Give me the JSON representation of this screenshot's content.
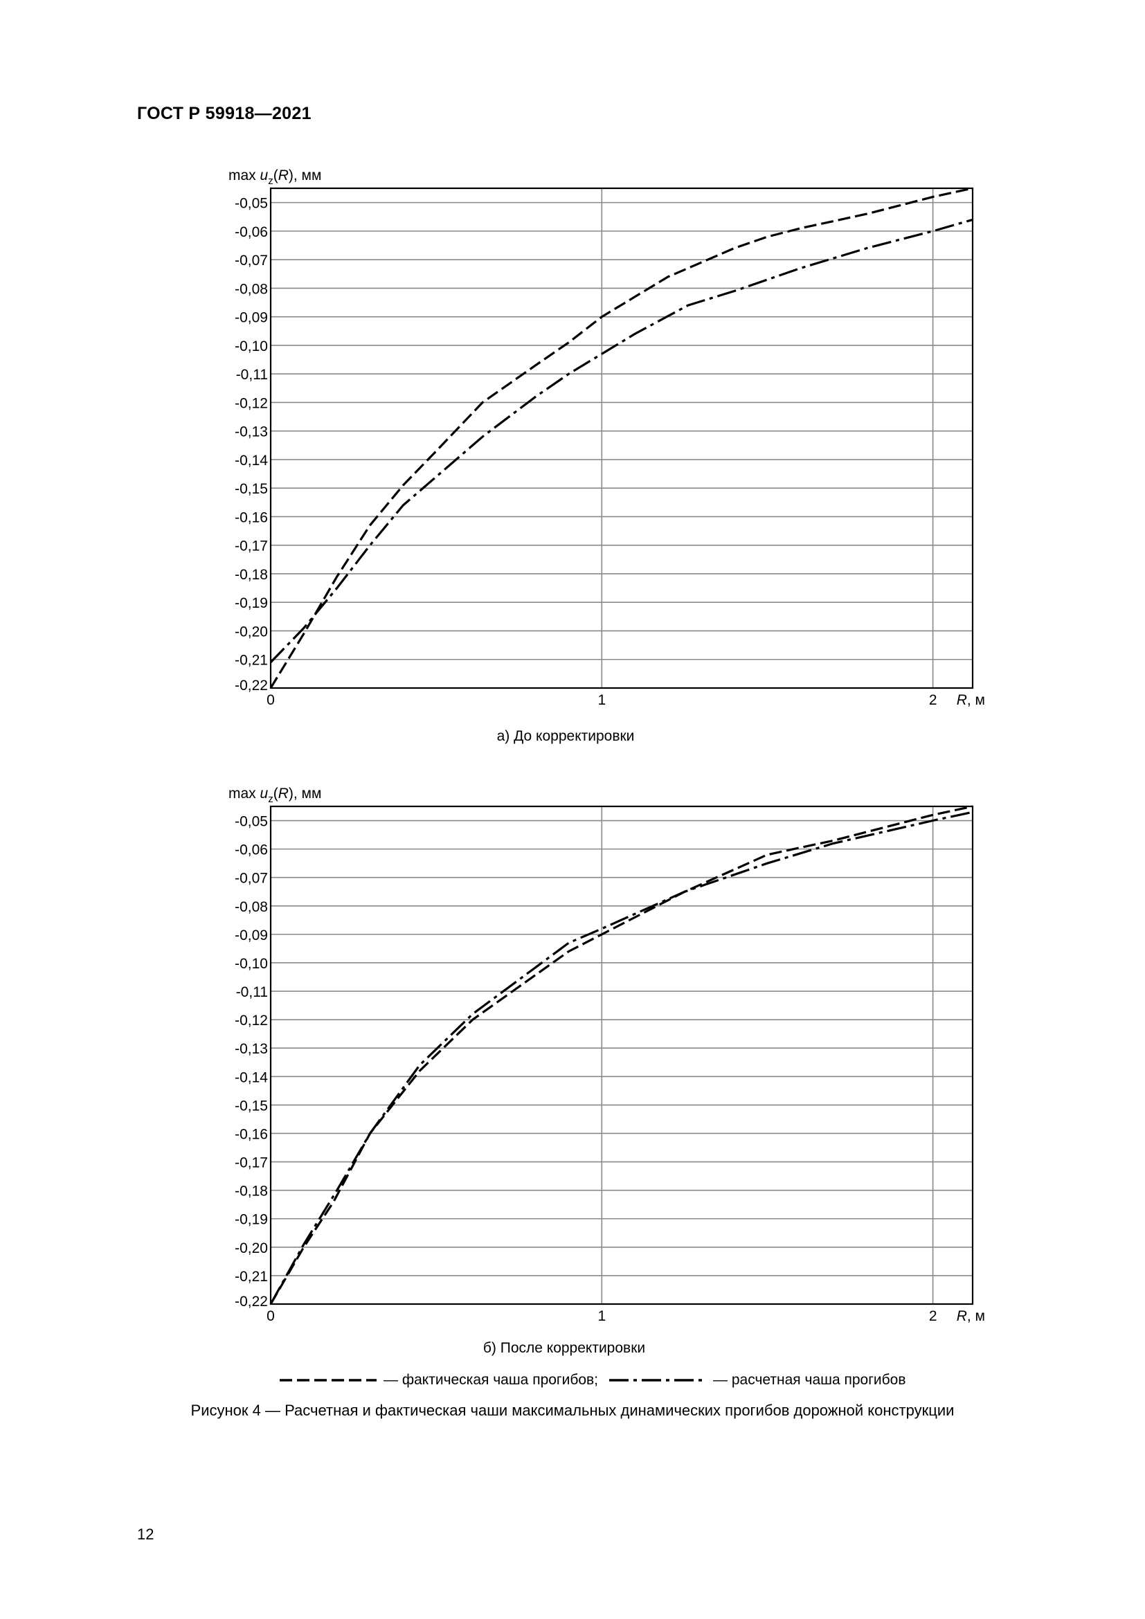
{
  "header": {
    "doc_id": "ГОСТ Р 59918—2021"
  },
  "chart_data": [
    {
      "type": "line",
      "caption": "а) До корректировки",
      "ylabel": "max u_z(R), мм",
      "ylabel_parts": {
        "prefix": "max ",
        "var": "u",
        "sub": "z",
        "arg_open": "(",
        "arg": "R",
        "suffix": "), мм"
      },
      "xlabel_parts": {
        "var": "R",
        "suffix": ", м"
      },
      "xlim": [
        0,
        2.12
      ],
      "ylim": [
        -0.22,
        -0.045
      ],
      "xticks": [
        0,
        1,
        2
      ],
      "xtick_labels": [
        "0",
        "1",
        "2"
      ],
      "yticks": [
        -0.05,
        -0.06,
        -0.07,
        -0.08,
        -0.09,
        -0.1,
        -0.11,
        -0.12,
        -0.13,
        -0.14,
        -0.15,
        -0.16,
        -0.17,
        -0.18,
        -0.19,
        -0.2,
        -0.21,
        -0.22
      ],
      "ytick_labels": [
        "-0,05",
        "-0,06",
        "-0,07",
        "-0,08",
        "-0,09",
        "-0,10",
        "-0,11",
        "-0,12",
        "-0,13",
        "-0,14",
        "-0,15",
        "-0,16",
        "-0,17",
        "-0,18",
        "-0,19",
        "-0,20",
        "-0,21",
        "-0,22"
      ],
      "grid": true,
      "series": [
        {
          "name": "фактическая чаша прогибов",
          "style": "dashed",
          "x": [
            0,
            0.1,
            0.2,
            0.3,
            0.4,
            0.5,
            0.64,
            0.8,
            0.9,
            1.0,
            1.1,
            1.2,
            1.3,
            1.4,
            1.5,
            1.6,
            1.8,
            2.0,
            2.12
          ],
          "y": [
            -0.22,
            -0.201,
            -0.181,
            -0.163,
            -0.149,
            -0.137,
            -0.12,
            -0.107,
            -0.099,
            -0.09,
            -0.083,
            -0.076,
            -0.071,
            -0.066,
            -0.062,
            -0.059,
            -0.054,
            -0.048,
            -0.045
          ]
        },
        {
          "name": "расчетная чаша прогибов",
          "style": "dashdot",
          "x": [
            0,
            0.1,
            0.2,
            0.3,
            0.4,
            0.5,
            0.64,
            0.8,
            0.9,
            1.0,
            1.1,
            1.26,
            1.4,
            1.6,
            1.8,
            2.0,
            2.12
          ],
          "y": [
            -0.211,
            -0.199,
            -0.185,
            -0.17,
            -0.156,
            -0.146,
            -0.132,
            -0.118,
            -0.11,
            -0.103,
            -0.096,
            -0.086,
            -0.081,
            -0.073,
            -0.066,
            -0.06,
            -0.056
          ]
        }
      ]
    },
    {
      "type": "line",
      "caption": "б) После корректировки",
      "ylabel": "max u_z(R), мм",
      "ylabel_parts": {
        "prefix": "max ",
        "var": "u",
        "sub": "z",
        "arg_open": "(",
        "arg": "R",
        "suffix": "), мм"
      },
      "xlabel_parts": {
        "var": "R",
        "suffix": ", м"
      },
      "xlim": [
        0,
        2.12
      ],
      "ylim": [
        -0.22,
        -0.045
      ],
      "xticks": [
        0,
        1,
        2
      ],
      "xtick_labels": [
        "0",
        "1",
        "2"
      ],
      "yticks": [
        -0.05,
        -0.06,
        -0.07,
        -0.08,
        -0.09,
        -0.1,
        -0.11,
        -0.12,
        -0.13,
        -0.14,
        -0.15,
        -0.16,
        -0.17,
        -0.18,
        -0.19,
        -0.2,
        -0.21,
        -0.22
      ],
      "ytick_labels": [
        "-0,05",
        "-0,06",
        "-0,07",
        "-0,08",
        "-0,09",
        "-0,10",
        "-0,11",
        "-0,12",
        "-0,13",
        "-0,14",
        "-0,15",
        "-0,16",
        "-0,17",
        "-0,18",
        "-0,19",
        "-0,20",
        "-0,21",
        "-0,22"
      ],
      "grid": true,
      "series": [
        {
          "name": "фактическая чаша прогибов",
          "style": "dashed",
          "x": [
            0,
            0.1,
            0.19,
            0.3,
            0.45,
            0.61,
            0.9,
            1.0,
            1.25,
            1.5,
            1.7,
            2.0,
            2.12
          ],
          "y": [
            -0.22,
            -0.2,
            -0.184,
            -0.16,
            -0.138,
            -0.12,
            -0.096,
            -0.09,
            -0.075,
            -0.062,
            -0.057,
            -0.048,
            -0.045
          ]
        },
        {
          "name": "расчетная чаша прогибов",
          "style": "dashdot",
          "x": [
            0,
            0.1,
            0.2,
            0.3,
            0.45,
            0.61,
            0.9,
            1.0,
            1.25,
            1.5,
            1.7,
            2.0,
            2.12
          ],
          "y": [
            -0.22,
            -0.199,
            -0.18,
            -0.16,
            -0.136,
            -0.118,
            -0.093,
            -0.088,
            -0.075,
            -0.065,
            -0.058,
            -0.05,
            -0.047
          ]
        }
      ]
    }
  ],
  "legend": {
    "dashed_text": "— фактическая чаша прогибов;",
    "dashdot_text": "— расчетная чаша прогибов"
  },
  "figure_caption": "Рисунок 4 — Расчетная и фактическая чаши максимальных динамических прогибов дорожной конструкции",
  "page_number": "12"
}
